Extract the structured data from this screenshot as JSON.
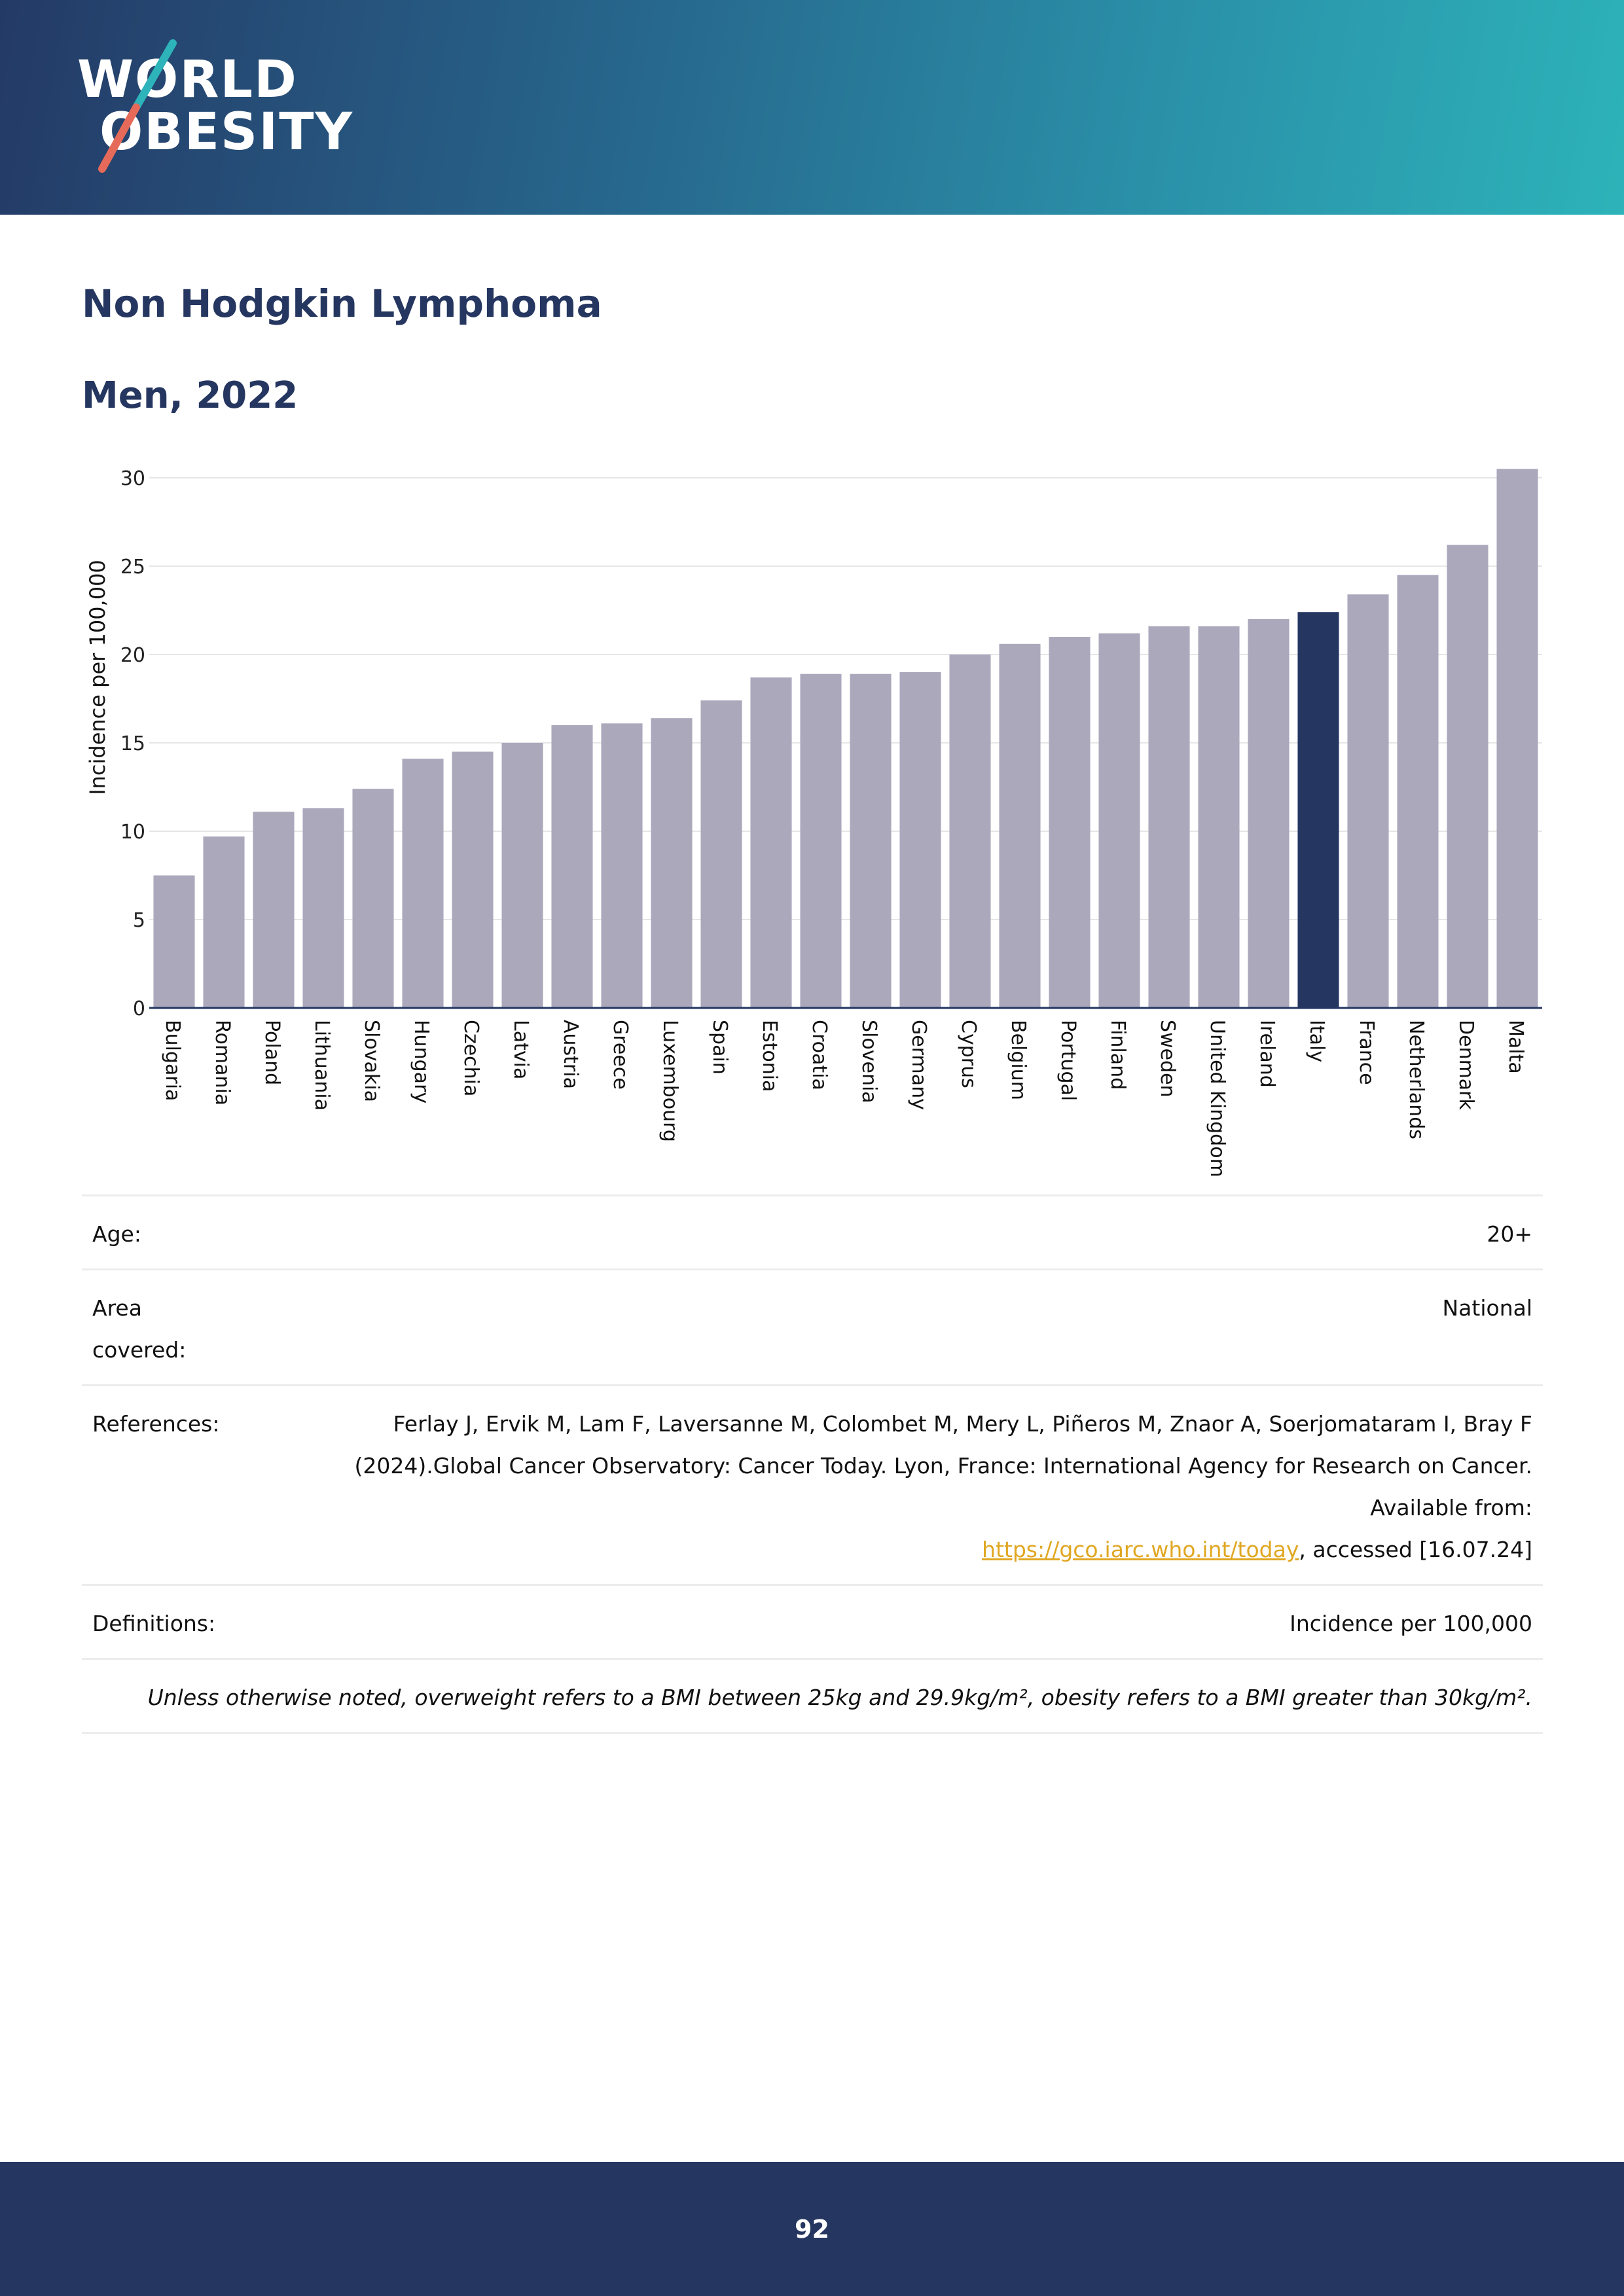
{
  "brand": {
    "logo_line1": "WORLD",
    "logo_line2": "OBESITY",
    "header_colors": [
      "#243a66",
      "#2db3b9"
    ]
  },
  "page": {
    "title": "Non Hodgkin Lymphoma",
    "subtitle": "Men, 2022",
    "page_number": "92"
  },
  "chart_data": {
    "type": "bar",
    "title": "",
    "xlabel": "",
    "ylabel": "Incidence per 100,000",
    "ylim": [
      0,
      30
    ],
    "yticks": [
      0,
      5,
      10,
      15,
      20,
      25,
      30
    ],
    "grid": true,
    "categories": [
      "Bulgaria",
      "Romania",
      "Poland",
      "Lithuania",
      "Slovakia",
      "Hungary",
      "Czechia",
      "Latvia",
      "Austria",
      "Greece",
      "Luxembourg",
      "Spain",
      "Estonia",
      "Croatia",
      "Slovenia",
      "Germany",
      "Cyprus",
      "Belgium",
      "Portugal",
      "Finland",
      "Sweden",
      "United Kingdom",
      "Ireland",
      "Italy",
      "France",
      "Netherlands",
      "Denmark",
      "Malta"
    ],
    "values": [
      7.5,
      9.7,
      11.1,
      11.3,
      12.4,
      14.1,
      14.5,
      15.0,
      16.0,
      16.1,
      16.4,
      17.4,
      18.7,
      18.9,
      18.9,
      19.0,
      20.0,
      20.6,
      21.0,
      21.2,
      21.6,
      21.6,
      22.0,
      22.4,
      23.4,
      24.5,
      26.2,
      30.5
    ],
    "highlight": "Italy",
    "bar_color": "#aca8bc",
    "highlight_color": "#253660"
  },
  "info": {
    "age_label": "Age:",
    "age_value": "20+",
    "area_label": "Area covered:",
    "area_value": "National",
    "references_label": "References:",
    "references_text": "Ferlay J, Ervik M, Lam F, Laversanne M, Colombet M, Mery L, Piñeros M, Znaor A, Soerjomataram I, Bray F (2024).Global Cancer Observatory: Cancer Today. Lyon, France: International Agency for Research on Cancer. Available from:",
    "references_link": "https://gco.iarc.who.int/today",
    "references_suffix": ", accessed [16.07.24]",
    "definitions_label": "Definitions:",
    "definitions_value": "Incidence per 100,000",
    "note": "Unless otherwise noted, overweight refers to a BMI between 25kg and 29.9kg/m², obesity refers to a BMI greater than 30kg/m²."
  }
}
